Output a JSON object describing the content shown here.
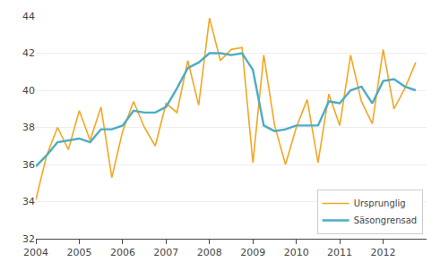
{
  "chart_data": {
    "type": "line",
    "x": [
      2004.0,
      2004.25,
      2004.5,
      2004.75,
      2005.0,
      2005.25,
      2005.5,
      2005.75,
      2006.0,
      2006.25,
      2006.5,
      2006.75,
      2007.0,
      2007.25,
      2007.5,
      2007.75,
      2008.0,
      2008.25,
      2008.5,
      2008.75,
      2009.0,
      2009.25,
      2009.5,
      2009.75,
      2010.0,
      2010.25,
      2010.5,
      2010.75,
      2011.0,
      2011.25,
      2011.5,
      2011.75,
      2012.0,
      2012.25,
      2012.5,
      2012.75
    ],
    "series": [
      {
        "name": "Ursprunglig",
        "color": "#f5a623",
        "values": [
          34.1,
          36.5,
          38.0,
          36.8,
          38.9,
          37.3,
          39.1,
          35.3,
          37.8,
          39.4,
          38.0,
          37.0,
          39.3,
          38.8,
          41.6,
          39.2,
          43.9,
          41.6,
          42.2,
          42.3,
          36.1,
          41.9,
          38.1,
          36.0,
          38.0,
          39.5,
          36.1,
          39.8,
          38.1,
          41.9,
          39.4,
          38.2,
          42.2,
          39.0,
          40.1,
          41.5
        ]
      },
      {
        "name": "Säsongrensad",
        "color": "#4bacc6",
        "values": [
          35.9,
          36.5,
          37.2,
          37.3,
          37.4,
          37.2,
          37.9,
          37.9,
          38.1,
          38.9,
          38.8,
          38.8,
          39.1,
          40.1,
          41.2,
          41.5,
          42.0,
          42.0,
          41.9,
          42.0,
          41.1,
          38.1,
          37.8,
          37.9,
          38.1,
          38.1,
          38.1,
          39.4,
          39.3,
          40.0,
          40.2,
          39.3,
          40.5,
          40.6,
          40.2,
          40.0
        ]
      }
    ],
    "xlim": [
      2004.0,
      2013.0
    ],
    "xticks": [
      2004,
      2005,
      2006,
      2007,
      2008,
      2009,
      2010,
      2011,
      2012
    ],
    "ylim": [
      32,
      44
    ],
    "yticks": [
      32,
      34,
      36,
      38,
      40,
      42,
      44
    ],
    "grid": "y",
    "legend": "lower right"
  }
}
